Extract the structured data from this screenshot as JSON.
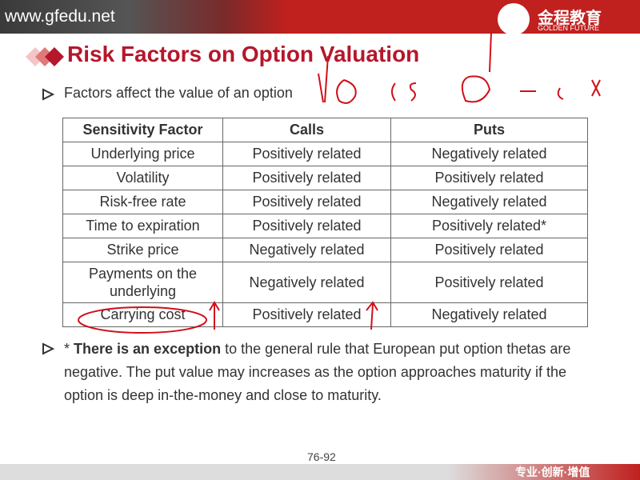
{
  "header": {
    "site": "www.gfedu.net",
    "logo_cn": "金程教育",
    "logo_en": "GOLDEN FUTURE"
  },
  "title": "Risk Factors on Option Valuation",
  "bullet": "Factors affect the value of an option",
  "table": {
    "columns": [
      "Sensitivity Factor",
      "Calls",
      "Puts"
    ],
    "rows": [
      [
        "Underlying price",
        "Positively related",
        "Negatively related"
      ],
      [
        "Volatility",
        "Positively related",
        "Positively related"
      ],
      [
        "Risk-free rate",
        "Positively related",
        "Negatively related"
      ],
      [
        "Time to expiration",
        "Positively related",
        "Positively related*"
      ],
      [
        "Strike price",
        "Negatively related",
        "Positively related"
      ],
      [
        "Payments on the underlying",
        "Negatively related",
        "Positively related"
      ],
      [
        "Carrying cost",
        "Positively related",
        "Negatively related"
      ]
    ]
  },
  "note": {
    "star": "* ",
    "bold": "There is an exception",
    "text": " to the general rule that European put option thetas are negative. The put value may increases as the option approaches maturity if the option is deep in-the-money and close to maturity."
  },
  "page_number": "76-92",
  "footer": "专业·创新·增值"
}
